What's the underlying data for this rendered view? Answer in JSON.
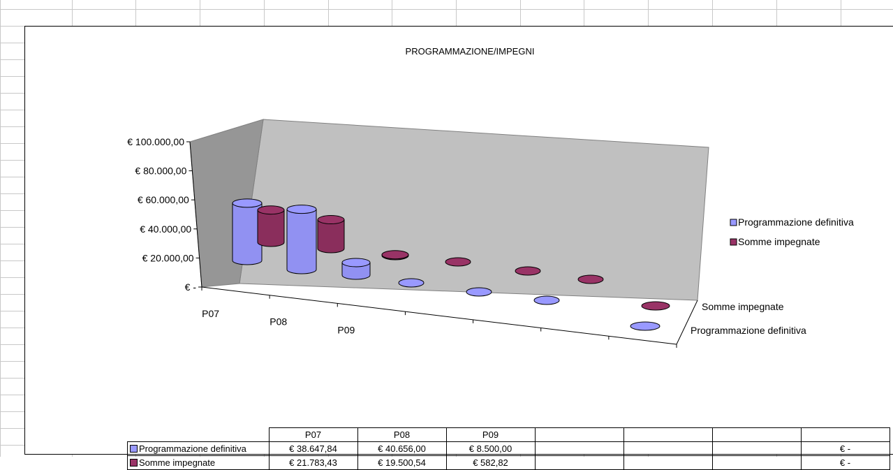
{
  "colors": {
    "series1": "#9999ff",
    "series2": "#993366",
    "wall": "#c0c0c0",
    "floor": "#c0c0c0"
  },
  "chart_data": {
    "type": "bar",
    "style": "3d-cylinder",
    "title": "PROGRAMMAZIONE/IMPEGNI",
    "categories": [
      "P07",
      "P08",
      "P09",
      "",
      "",
      "",
      ""
    ],
    "series": [
      {
        "name": "Programmazione definitiva",
        "values": [
          38647.84,
          40656.0,
          8500.0,
          0,
          0,
          0,
          0
        ],
        "color": "#9999ff"
      },
      {
        "name": "Somme impegnate",
        "values": [
          21783.43,
          19500.54,
          582.82,
          0,
          0,
          0,
          0
        ],
        "color": "#993366"
      }
    ],
    "y_ticks": [
      "€ 100.000,00",
      "€ 80.000,00",
      "€ 60.000,00",
      "€ 40.000,00",
      "€ 20.000,00",
      "€ -"
    ],
    "ylim": [
      0,
      100000
    ],
    "legend_position": "right",
    "depth_labels": [
      "Somme impegnate",
      "Programmazione definitiva"
    ]
  },
  "table": {
    "headers": [
      "P07",
      "P08",
      "P09",
      "",
      "",
      "",
      ""
    ],
    "rows": [
      {
        "label": "Programmazione definitiva",
        "cells": [
          "€ 38.647,84",
          "€ 40.656,00",
          "€ 8.500,00",
          "",
          "",
          "",
          "€ -"
        ]
      },
      {
        "label": "Somme impegnate",
        "cells": [
          "€ 21.783,43",
          "€ 19.500,54",
          "€ 582,82",
          "",
          "",
          "",
          "€ -"
        ]
      }
    ]
  }
}
